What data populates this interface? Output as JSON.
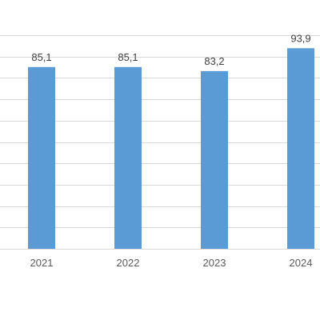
{
  "chart_data": {
    "type": "bar",
    "categories": [
      "2021",
      "2022",
      "2023",
      "2024"
    ],
    "values": [
      85.1,
      85.1,
      83.2,
      93.9
    ],
    "data_labels": [
      "85,1",
      "85,1",
      "83,2",
      "93,9"
    ],
    "ylim": [
      0,
      100
    ],
    "grid": true,
    "legend": "none",
    "colors": {
      "bar": "#5b9bd5",
      "grid": "#d9d9d9",
      "label": "#404040",
      "tick": "#595959"
    }
  }
}
